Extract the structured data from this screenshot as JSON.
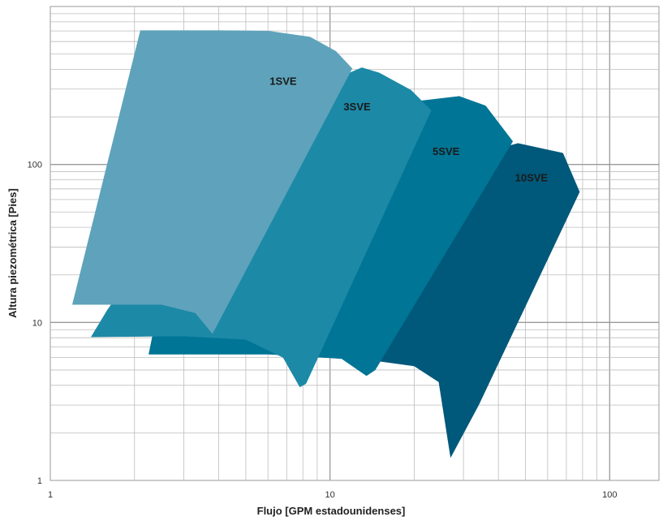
{
  "chart_data": {
    "type": "area",
    "xlabel": "Flujo [GPM estadounidenses]",
    "ylabel": "Altura piezométrica [Pies]",
    "xscale": "log",
    "yscale": "log",
    "xlim": [
      1,
      150
    ],
    "ylim": [
      1,
      1000
    ],
    "x_tick_labels": [
      "1",
      "10",
      "100"
    ],
    "y_tick_labels": [
      "1",
      "10",
      "100"
    ],
    "grid": true,
    "series": [
      {
        "name": "10SVE",
        "color": "#00587A",
        "outline": [
          [
            2.25,
            6.3
          ],
          [
            6.0,
            6.3
          ],
          [
            12.0,
            6.0
          ],
          [
            20.0,
            5.3
          ],
          [
            24.5,
            4.2
          ],
          [
            27.0,
            1.4
          ],
          [
            34.0,
            3.0
          ],
          [
            78.0,
            67.0
          ],
          [
            68.0,
            118.0
          ],
          [
            47.0,
            136.0
          ],
          [
            22.0,
            95.0
          ],
          [
            5.0,
            40.0
          ],
          [
            2.8,
            18.0
          ]
        ]
      },
      {
        "name": "5SVE",
        "color": "#007595",
        "outline": [
          [
            2.25,
            6.3
          ],
          [
            6.0,
            6.3
          ],
          [
            11.0,
            5.9
          ],
          [
            13.5,
            4.6
          ],
          [
            14.5,
            5.0
          ],
          [
            45.0,
            140.0
          ],
          [
            36.0,
            235.0
          ],
          [
            29.0,
            270.0
          ],
          [
            20.0,
            250.0
          ],
          [
            4.0,
            110.0
          ],
          [
            2.6,
            22.0
          ]
        ]
      },
      {
        "name": "3SVE",
        "color": "#1C89A7",
        "outline": [
          [
            1.4,
            8.1
          ],
          [
            3.0,
            8.2
          ],
          [
            5.0,
            7.8
          ],
          [
            6.8,
            6.0
          ],
          [
            7.8,
            3.9
          ],
          [
            8.2,
            4.1
          ],
          [
            23.0,
            220.0
          ],
          [
            19.5,
            295.0
          ],
          [
            15.0,
            380.0
          ],
          [
            13.0,
            410.0
          ],
          [
            5.0,
            200.0
          ],
          [
            1.6,
            12.0
          ]
        ]
      },
      {
        "name": "1SVE",
        "color": "#5EA3BB",
        "outline": [
          [
            1.2,
            13.0
          ],
          [
            2.5,
            13.0
          ],
          [
            3.3,
            11.5
          ],
          [
            3.8,
            8.5
          ],
          [
            12.0,
            405.0
          ],
          [
            10.5,
            520.0
          ],
          [
            8.5,
            640.0
          ],
          [
            6.0,
            700.0
          ],
          [
            4.0,
            705.0
          ],
          [
            2.1,
            705.0
          ]
        ]
      }
    ],
    "labels": [
      {
        "text": "1SVE",
        "x": 6.8,
        "y": 320
      },
      {
        "text": "3SVE",
        "x": 12.5,
        "y": 220
      },
      {
        "text": "5SVE",
        "x": 26.0,
        "y": 115
      },
      {
        "text": "10SVE",
        "x": 52.5,
        "y": 78
      }
    ]
  }
}
